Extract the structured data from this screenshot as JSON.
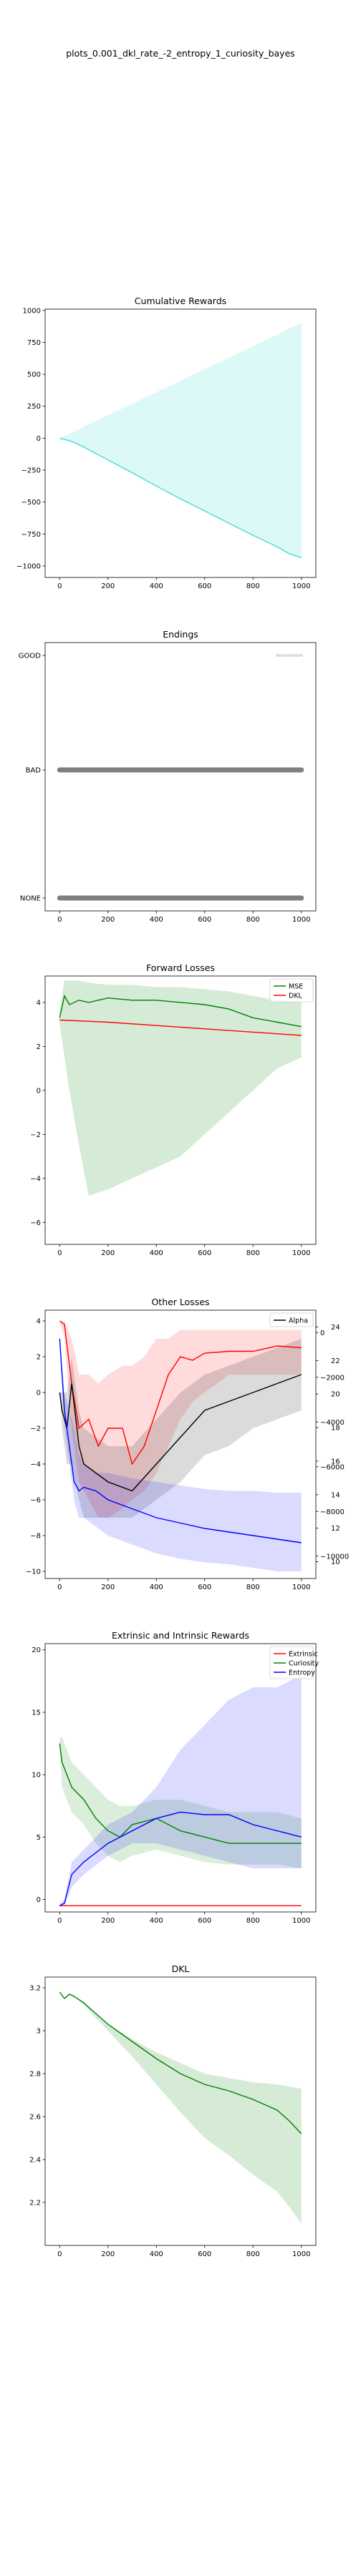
{
  "figure_title": "plots_0.001_dkl_rate_-2_entropy_1_curiosity_bayes",
  "colors": {
    "turquoise": "#40e0d0",
    "gray": "#7f7f7f",
    "green": "#008000",
    "red": "#ff0000",
    "blue": "#0000ff",
    "black": "#000000"
  },
  "chart_data": [
    {
      "type": "line",
      "title": "Cumulative Rewards",
      "xlabel": "",
      "ylabel": "",
      "xlim": [
        -60,
        1060
      ],
      "ylim": [
        -1090,
        1010
      ],
      "xticks": [
        0,
        200,
        400,
        600,
        800,
        1000
      ],
      "yticks": [
        1000,
        750,
        500,
        250,
        0,
        -250,
        -500,
        -750,
        -1000
      ],
      "series": [
        {
          "name": "",
          "color": "#40e0d0",
          "x": [
            0,
            50,
            100,
            200,
            300,
            400,
            500,
            600,
            700,
            800,
            900,
            950,
            1000
          ],
          "y": [
            0,
            -25,
            -70,
            -170,
            -270,
            -375,
            -475,
            -570,
            -665,
            -760,
            -850,
            -905,
            -935
          ],
          "band_upper": [
            0,
            40,
            90,
            180,
            270,
            360,
            450,
            540,
            630,
            720,
            810,
            860,
            900
          ],
          "band_lower": [
            0,
            -25,
            -70,
            -170,
            -270,
            -375,
            -475,
            -570,
            -665,
            -760,
            -850,
            -905,
            -940
          ]
        }
      ]
    },
    {
      "type": "scatter",
      "title": "Endings",
      "xlabel": "",
      "ylabel": "",
      "xlim": [
        -60,
        1060
      ],
      "categories": [
        "GOOD",
        "BAD",
        "NONE"
      ],
      "xticks": [
        0,
        200,
        400,
        600,
        800,
        1000
      ],
      "series": [
        {
          "name": "BAD",
          "color": "#7f7f7f",
          "x_range": [
            0,
            1000
          ]
        },
        {
          "name": "NONE",
          "color": "#7f7f7f",
          "x_range": [
            0,
            1000
          ]
        },
        {
          "name": "GOOD",
          "color": "#dddddd",
          "x_range": [
            900,
            1000
          ]
        }
      ]
    },
    {
      "type": "line",
      "title": "Forward Losses",
      "xlabel": "",
      "ylabel": "",
      "xlim": [
        -60,
        1060
      ],
      "ylim": [
        -7,
        5.2
      ],
      "xticks": [
        0,
        200,
        400,
        600,
        800,
        1000
      ],
      "yticks": [
        4,
        2,
        0,
        -2,
        -4,
        -6
      ],
      "legend": "top-right",
      "series": [
        {
          "name": "MSE",
          "color": "#008000",
          "x": [
            0,
            20,
            40,
            80,
            120,
            200,
            300,
            400,
            500,
            600,
            700,
            800,
            900,
            1000
          ],
          "y": [
            3.3,
            4.3,
            3.9,
            4.1,
            4.0,
            4.2,
            4.1,
            4.1,
            4.0,
            3.9,
            3.7,
            3.3,
            3.1,
            2.9
          ],
          "band_upper": [
            3.6,
            5.0,
            5.0,
            5.0,
            4.9,
            4.8,
            4.8,
            4.7,
            4.7,
            4.6,
            4.5,
            4.3,
            4.1,
            4.0
          ],
          "band_lower": [
            3.0,
            1.5,
            0.0,
            -2.5,
            -4.8,
            -4.5,
            -4.0,
            -3.5,
            -3.0,
            -2.0,
            -1.0,
            0.0,
            1.0,
            1.5
          ]
        },
        {
          "name": "DKL",
          "color": "#ff0000",
          "x": [
            0,
            200,
            400,
            600,
            800,
            1000
          ],
          "y": [
            3.2,
            3.1,
            2.95,
            2.8,
            2.65,
            2.5
          ]
        }
      ]
    },
    {
      "type": "line",
      "title": "Other Losses",
      "xlabel": "",
      "ylabel": "",
      "xlim": [
        -60,
        1060
      ],
      "ylim": [
        -10.4,
        4.6
      ],
      "xticks": [
        0,
        200,
        400,
        600,
        800,
        1000
      ],
      "yticks": [
        4,
        2,
        0,
        -2,
        -4,
        -6,
        -8,
        -10
      ],
      "y2ticks_right_outer": [
        24,
        22,
        20,
        18,
        16,
        14,
        12,
        10
      ],
      "y2ticks_right_inner": [
        0,
        -2000,
        -4000,
        -6000,
        -8000,
        -10000
      ],
      "legend": "top-right",
      "series": [
        {
          "name": "",
          "color": "#ff0000",
          "x": [
            0,
            20,
            50,
            80,
            120,
            160,
            200,
            260,
            300,
            350,
            400,
            450,
            500,
            550,
            600,
            700,
            800,
            900,
            1000
          ],
          "y": [
            4,
            3.8,
            0.5,
            -2,
            -1.5,
            -3,
            -2,
            -2,
            -4,
            -3,
            -1,
            1,
            2,
            1.8,
            2.2,
            2.3,
            2.3,
            2.6,
            2.5
          ],
          "band_upper": [
            4,
            4,
            3,
            1,
            1,
            0.5,
            1,
            1.5,
            1.5,
            2,
            3,
            3,
            3.5,
            3.5,
            3.5,
            3.5,
            3.5,
            3.5,
            3.5
          ],
          "band_lower": [
            4,
            3,
            -2,
            -5,
            -6,
            -7,
            -7,
            -6.5,
            -6,
            -5.5,
            -4.5,
            -3,
            -1.5,
            -0.5,
            0,
            1,
            1,
            1,
            1
          ]
        },
        {
          "name": "Alpha",
          "color": "#000000",
          "x": [
            0,
            10,
            30,
            50,
            80,
            100,
            150,
            200,
            300,
            400,
            500,
            600,
            700,
            800,
            900,
            1000
          ],
          "y": [
            0,
            -1,
            -2,
            0.5,
            -3,
            -4,
            -4.5,
            -5,
            -5.5,
            -4,
            -2.5,
            -1,
            -0.5,
            0,
            0.5,
            1
          ],
          "band_upper": [
            0,
            0,
            0,
            2,
            -1,
            -2,
            -2.5,
            -3,
            -3,
            -1.5,
            0,
            1,
            1.5,
            2,
            2.5,
            3
          ],
          "band_lower": [
            0,
            -2,
            -4,
            -4,
            -6,
            -7,
            -7,
            -7,
            -7,
            -6,
            -5,
            -3.5,
            -3,
            -2,
            -1.5,
            -1
          ]
        },
        {
          "name": "",
          "color": "#0000ff",
          "x": [
            0,
            20,
            40,
            60,
            80,
            100,
            150,
            200,
            300,
            400,
            500,
            600,
            700,
            800,
            900,
            1000
          ],
          "y": [
            3,
            -1,
            -3,
            -5,
            -5.5,
            -5.3,
            -5.5,
            -6,
            -6.5,
            -7,
            -7.3,
            -7.6,
            -7.8,
            -8,
            -8.2,
            -8.4
          ],
          "band_upper": [
            3,
            0,
            -1,
            -2,
            -3.5,
            -4,
            -4.5,
            -4.5,
            -4.8,
            -5,
            -5.2,
            -5.4,
            -5.5,
            -5.5,
            -5.6,
            -5.6
          ],
          "band_lower": [
            3,
            -2,
            -4,
            -6,
            -7,
            -7,
            -7.5,
            -8,
            -8.5,
            -9,
            -9.3,
            -9.5,
            -9.6,
            -9.8,
            -10,
            -10
          ]
        }
      ]
    },
    {
      "type": "line",
      "title": "Extrinsic and Intrinsic Rewards",
      "xlabel": "",
      "ylabel": "",
      "xlim": [
        -60,
        1060
      ],
      "ylim": [
        -1,
        20.5
      ],
      "xticks": [
        0,
        200,
        400,
        600,
        800,
        1000
      ],
      "yticks": [
        20,
        15,
        10,
        5,
        0
      ],
      "legend": "top-right",
      "series": [
        {
          "name": "Extrinsic",
          "color": "#ff0000",
          "x": [
            0,
            100,
            200,
            400,
            600,
            800,
            1000
          ],
          "y": [
            -0.5,
            -0.5,
            -0.5,
            -0.5,
            -0.5,
            -0.5,
            -0.5
          ]
        },
        {
          "name": "Curiosity",
          "color": "#008000",
          "x": [
            0,
            10,
            50,
            100,
            150,
            200,
            250,
            300,
            400,
            500,
            600,
            700,
            800,
            900,
            1000
          ],
          "y": [
            12.5,
            11,
            9,
            8,
            6.5,
            5.5,
            5,
            6,
            6.5,
            5.5,
            5,
            4.5,
            4.5,
            4.5,
            4.5
          ],
          "band_upper": [
            13,
            13,
            11,
            10,
            9,
            8,
            7.5,
            7.5,
            8,
            8,
            7.5,
            7,
            7,
            7,
            6.5
          ],
          "band_lower": [
            12,
            9,
            7,
            6,
            4.5,
            3.5,
            3,
            3.5,
            4,
            3.5,
            3,
            2.8,
            2.8,
            2.8,
            2.5
          ]
        },
        {
          "name": "Entropy",
          "color": "#0000ff",
          "x": [
            0,
            20,
            50,
            100,
            200,
            300,
            400,
            500,
            600,
            700,
            800,
            900,
            1000
          ],
          "y": [
            -0.5,
            -0.3,
            2,
            3,
            4.5,
            5.5,
            6.5,
            7,
            6.8,
            6.8,
            6,
            5.5,
            5
          ],
          "band_upper": [
            -0.3,
            0,
            3,
            4,
            6,
            7,
            9,
            12,
            14,
            16,
            17,
            17,
            18
          ],
          "band_lower": [
            -0.6,
            -0.5,
            1,
            2,
            3.5,
            4.5,
            4.5,
            4,
            3.5,
            3,
            2.5,
            2.5,
            2.5
          ]
        }
      ]
    },
    {
      "type": "line",
      "title": "DKL",
      "xlabel": "",
      "ylabel": "",
      "xlim": [
        -60,
        1060
      ],
      "ylim": [
        2.0,
        3.25
      ],
      "xticks": [
        0,
        200,
        400,
        600,
        800,
        1000
      ],
      "yticks": [
        3.2,
        3.0,
        2.8,
        2.6,
        2.4,
        2.2
      ],
      "series": [
        {
          "name": "",
          "color": "#008000",
          "x": [
            0,
            20,
            40,
            60,
            100,
            200,
            300,
            400,
            500,
            600,
            700,
            800,
            900,
            950,
            1000
          ],
          "y": [
            3.18,
            3.15,
            3.17,
            3.16,
            3.13,
            3.03,
            2.95,
            2.87,
            2.8,
            2.75,
            2.72,
            2.68,
            2.63,
            2.58,
            2.52
          ],
          "band_upper": [
            3.18,
            3.15,
            3.17,
            3.16,
            3.13,
            3.03,
            2.96,
            2.9,
            2.85,
            2.8,
            2.78,
            2.76,
            2.75,
            2.74,
            2.73
          ],
          "band_lower": [
            3.18,
            3.15,
            3.17,
            3.16,
            3.12,
            3.0,
            2.88,
            2.75,
            2.62,
            2.5,
            2.42,
            2.33,
            2.25,
            2.18,
            2.1
          ]
        }
      ]
    }
  ]
}
